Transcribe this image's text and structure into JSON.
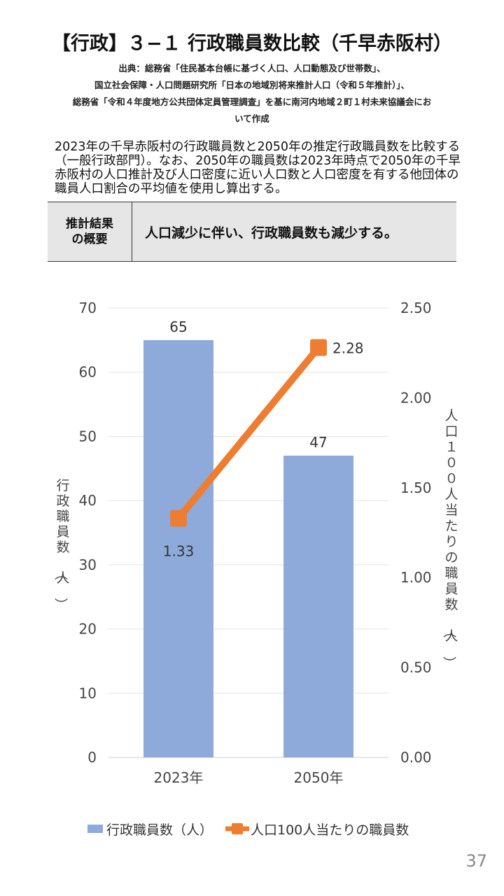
{
  "title": "【行政】３−１ 行政職員数比較（千早赤阪村）",
  "source_lines": [
    "出典：総務省「住民基本台帳に基づく人口、人口動態及び世帯数」、",
    "国立社会保障・人口問題研究所「日本の地域別将来推計人口（令和５年推計）」、",
    "総務省「令和４年度地方公共団体定員管理調査」を基に南河内地域２町１村未来協議会にお",
    "いて作成"
  ],
  "description": "2023年の千早赤阪村の行政職員数と2050年の推定行政職員数を比較する（一般行政部門）。なお、2050年の職員数は2023年時点で2050年の千早赤阪村の人口推計及び人口密度に近い人口数と人口密度を有する他団体の職員人口割合の平均値を使用し算出する。",
  "summary": {
    "label": "推計結果\nの概要",
    "text": "人口減少に伴い、行政職員数も減少する。"
  },
  "chart_data": {
    "type": "bar+line",
    "categories": [
      "2023年",
      "2050年"
    ],
    "series": [
      {
        "name": "行政職員数（人）",
        "type": "bar",
        "axis": "left",
        "values": [
          65,
          47
        ],
        "labels": [
          "65",
          "47"
        ],
        "color": "#8eaadb"
      },
      {
        "name": "人口100人当たりの職員数",
        "type": "line",
        "axis": "right",
        "values": [
          1.33,
          2.28
        ],
        "labels": [
          "1.33",
          "2.28"
        ],
        "color": "#ed7d31"
      }
    ],
    "ylabel": "行政職員数（人）",
    "y2label": "人口１００人当たりの職員数（人）",
    "ylim": [
      0,
      70
    ],
    "y2lim": [
      0,
      2.5
    ],
    "yticks": [
      "0",
      "10",
      "20",
      "30",
      "40",
      "50",
      "60",
      "70"
    ],
    "y2ticks": [
      "0.00",
      "0.50",
      "1.00",
      "1.50",
      "2.00",
      "2.50"
    ],
    "grid": true,
    "legend": "bottom"
  },
  "page_number": "37"
}
